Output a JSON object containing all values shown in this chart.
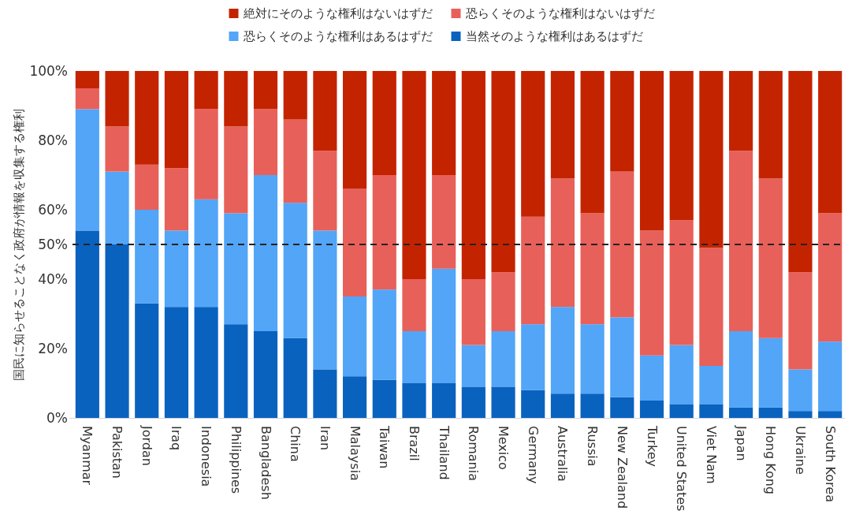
{
  "chart_data": {
    "type": "bar",
    "stacked": true,
    "ylabel": "国民に知らせることなく政府が情報を収集する権利",
    "categories": [
      "Myanmar",
      "Pakistan",
      "Jordan",
      "Iraq",
      "Indonesia",
      "Philippines",
      "Bangladesh",
      "China",
      "Iran",
      "Malaysia",
      "Taiwan",
      "Brazil",
      "Thailand",
      "Romania",
      "Mexico",
      "Germany",
      "Australia",
      "Russia",
      "New Zealand",
      "Turkey",
      "United States",
      "Viet Nam",
      "Japan",
      "Hong Kong",
      "Ukraine",
      "South Korea"
    ],
    "series": [
      {
        "name": "当然そのような権利はあるはずだ",
        "color": "#0a62bf",
        "values": [
          54,
          50,
          33,
          32,
          32,
          27,
          25,
          23,
          14,
          12,
          11,
          10,
          10,
          9,
          9,
          8,
          7,
          7,
          6,
          5,
          4,
          4,
          3,
          3,
          2,
          2
        ]
      },
      {
        "name": "恐らくそのような権利はあるはずだ",
        "color": "#52a5f7",
        "values": [
          35,
          21,
          27,
          22,
          31,
          32,
          45,
          39,
          40,
          23,
          26,
          15,
          33,
          12,
          16,
          19,
          25,
          20,
          23,
          13,
          17,
          11,
          22,
          20,
          12,
          20
        ]
      },
      {
        "name": "恐らくそのような権利はないはずだ",
        "color": "#e8605a",
        "values": [
          6,
          13,
          13,
          18,
          26,
          25,
          19,
          24,
          23,
          31,
          33,
          15,
          27,
          19,
          17,
          31,
          37,
          32,
          42,
          36,
          36,
          34,
          52,
          46,
          28,
          37
        ]
      },
      {
        "name": "絶対にそのような権利はないはずだ",
        "color": "#c42300",
        "values": [
          5,
          16,
          27,
          28,
          11,
          16,
          11,
          14,
          23,
          34,
          30,
          60,
          30,
          60,
          58,
          42,
          31,
          41,
          29,
          46,
          43,
          51,
          23,
          31,
          58,
          41
        ]
      }
    ],
    "ylim": [
      0,
      100
    ],
    "yticks": [
      {
        "value": 0,
        "label": "0%"
      },
      {
        "value": 20,
        "label": "20%"
      },
      {
        "value": 40,
        "label": "40%"
      },
      {
        "value": 50,
        "label": "50%"
      },
      {
        "value": 60,
        "label": "60%"
      },
      {
        "value": 80,
        "label": "80%"
      },
      {
        "value": 100,
        "label": "100%"
      }
    ],
    "ref_lines": [
      {
        "axis": "y",
        "value": 50,
        "color": "#222222",
        "line_style": "dashed"
      }
    ],
    "legend": "top",
    "grid": false
  }
}
